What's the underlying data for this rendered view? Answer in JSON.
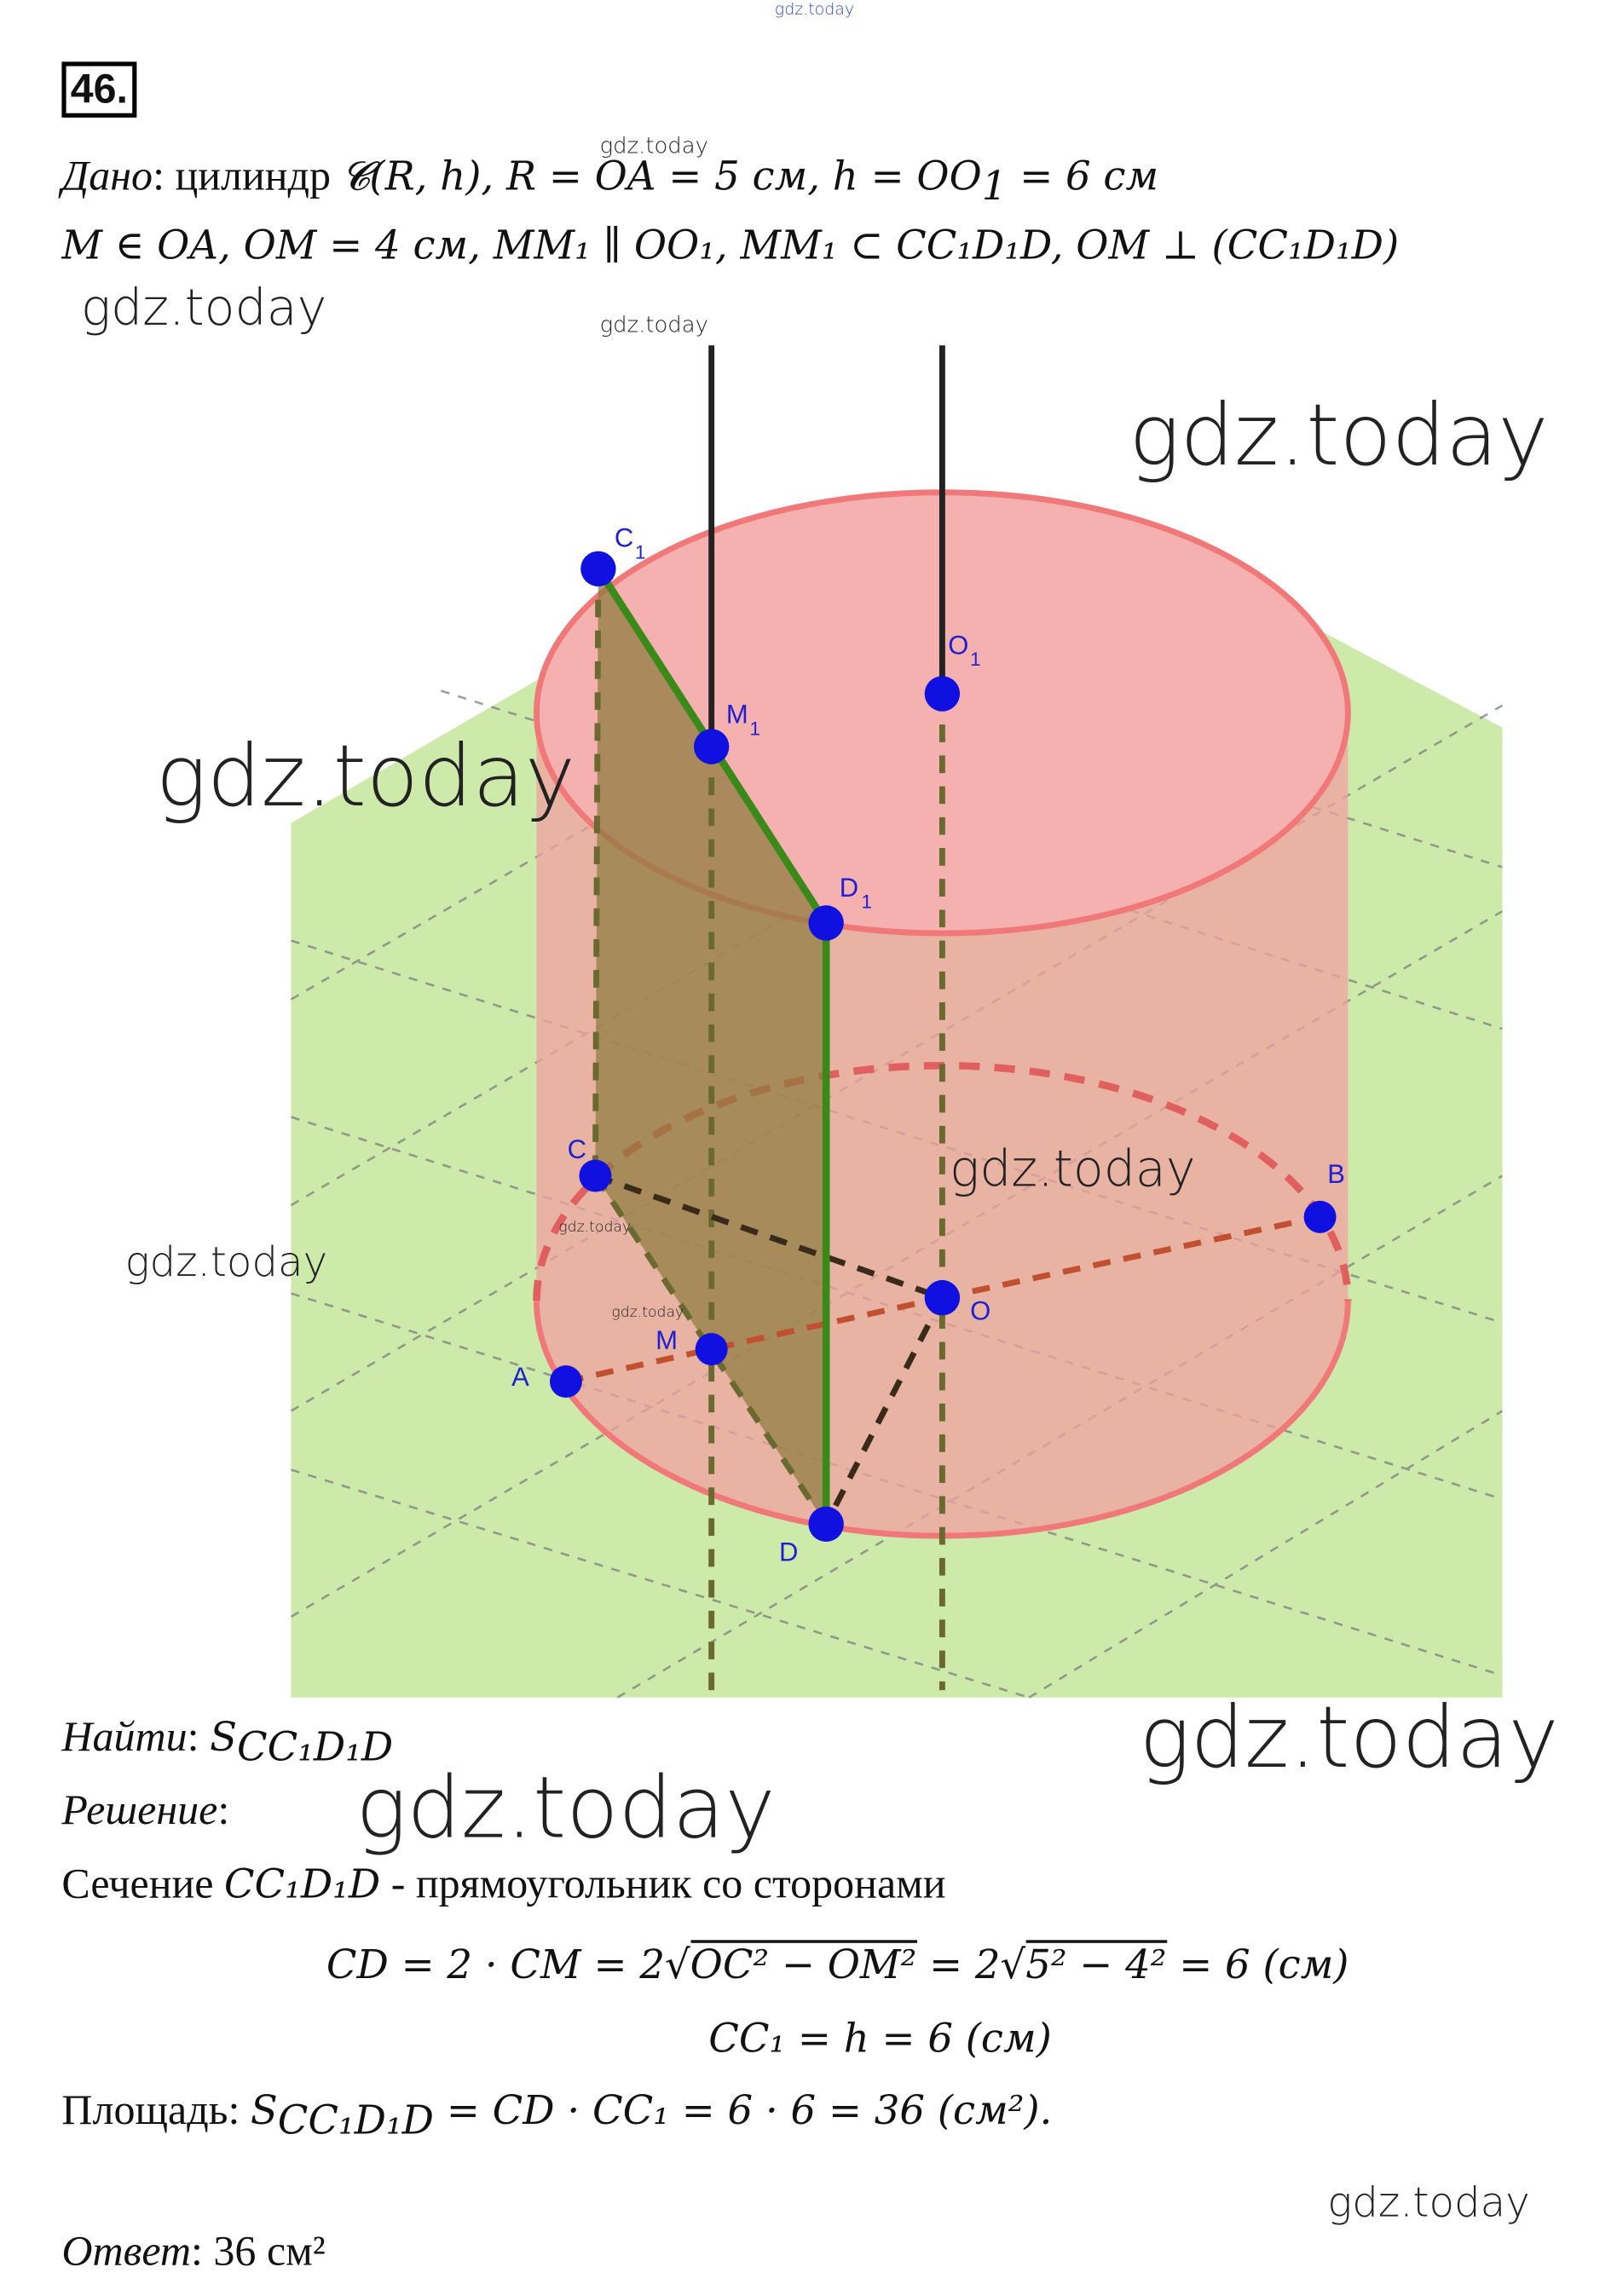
{
  "watermark": "gdz.today",
  "problem_number": "46.",
  "given": {
    "label": "Дано",
    "line1_text": "цилиндр",
    "line1_math": "𝓒(R, h), R = OA = 5 см,  h = OO",
    "line1_end": " = 6 см",
    "sub1": "1",
    "line2": "M ∈ OA, OM = 4 см,  MM₁ ∥ OO₁,  MM₁ ⊂ CC₁D₁D,  OM ⊥ (CC₁D₁D)"
  },
  "diagram": {
    "points": [
      {
        "name": "C",
        "sub": "1"
      },
      {
        "name": "M",
        "sub": "1"
      },
      {
        "name": "D",
        "sub": "1"
      },
      {
        "name": "O",
        "sub": "1"
      },
      {
        "name": "C"
      },
      {
        "name": "O"
      },
      {
        "name": "M"
      },
      {
        "name": "A"
      },
      {
        "name": "D"
      },
      {
        "name": "B"
      }
    ],
    "colors": {
      "plane": "#cdeaaa",
      "cylinder": "#f2a0a0",
      "cylinder_edge": "#f07878",
      "section": "#8a7a3a",
      "section_edge": "#3a8a1a",
      "point": "#1010e0",
      "axis": "#222222"
    }
  },
  "find": {
    "label": "Найти",
    "value": "S",
    "sub": "CC₁D₁D"
  },
  "solution": {
    "label": "Решение",
    "line1_text": "Сечение",
    "line1_math": "CC₁D₁D",
    "line1_rest": " - прямоугольник со сторонами",
    "eq1_a": "CD = 2 · CM = 2",
    "eq1_root1": "OC² − OM²",
    "eq1_b": " = 2",
    "eq1_root2": "5² − 4²",
    "eq1_c": " = 6 (см)",
    "eq2": "CC₁ = h = 6 (см)",
    "area_label": "Площадь:",
    "area_s": "S",
    "area_sub": "CC₁D₁D",
    "area_rest": "  = CD · CC₁ = 6 · 6 = 36 (см²)."
  },
  "answer": {
    "label": "Ответ",
    "value": "36 см²"
  }
}
